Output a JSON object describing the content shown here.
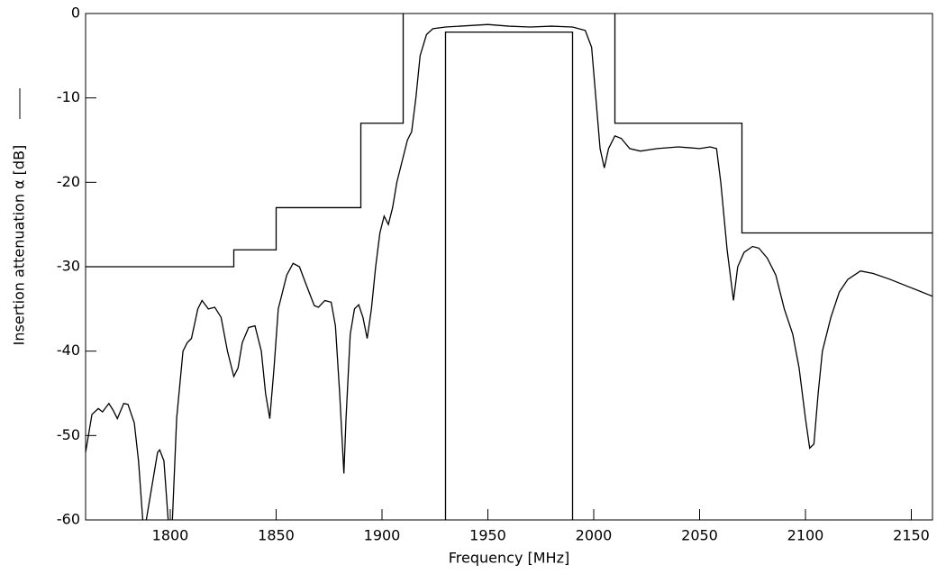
{
  "chart_data": {
    "type": "line",
    "xlabel": "Frequency [MHz]",
    "ylabel": "Insertion attenuation α [dB]",
    "xlim": [
      1760,
      2160
    ],
    "ylim": [
      -60,
      0
    ],
    "xticks": [
      1800,
      1850,
      1900,
      1950,
      2000,
      2050,
      2100,
      2150
    ],
    "yticks": [
      0,
      -10,
      -20,
      -30,
      -40,
      -50,
      -60
    ],
    "color": "#000000",
    "lines": [
      {
        "x": [
          1760,
          1763,
          1766,
          1768,
          1771,
          1773,
          1775,
          1778,
          1780,
          1783,
          1785,
          1787,
          1788,
          1790,
          1792,
          1794,
          1795,
          1797,
          1799,
          1800,
          1801,
          1803,
          1806,
          1808,
          1810,
          1813,
          1815,
          1818,
          1821,
          1824,
          1827,
          1830,
          1832,
          1834,
          1837,
          1840,
          1843,
          1845,
          1847,
          1849,
          1851,
          1855,
          1858,
          1861,
          1864,
          1868,
          1870,
          1873,
          1876,
          1878,
          1880,
          1882,
          1883,
          1885,
          1887,
          1889,
          1891,
          1893,
          1895,
          1897,
          1899,
          1901,
          1903,
          1905,
          1907,
          1909,
          1912,
          1914,
          1916,
          1918,
          1921,
          1924,
          1930,
          1950,
          1960,
          1970,
          1980,
          1990,
          1996,
          1999,
          2001,
          2003,
          2005,
          2007,
          2010,
          2013,
          2017,
          2022,
          2030,
          2040,
          2050,
          2055,
          2058,
          2060,
          2063,
          2066,
          2068,
          2071,
          2075,
          2078,
          2082,
          2086,
          2090,
          2094,
          2097,
          2100,
          2102,
          2104,
          2106,
          2108,
          2112,
          2116,
          2120,
          2126,
          2132,
          2140,
          2150,
          2160
        ],
        "y": [
          -52,
          -47.5,
          -46.8,
          -47.2,
          -46.2,
          -47,
          -48,
          -46.2,
          -46.3,
          -48.5,
          -53,
          -60,
          -61,
          -58,
          -55,
          -52,
          -51.7,
          -53,
          -60,
          -61,
          -60,
          -48,
          -40,
          -39,
          -38.5,
          -35,
          -34,
          -35,
          -34.8,
          -36,
          -40,
          -43,
          -42,
          -39,
          -37.2,
          -37,
          -40,
          -45,
          -48,
          -42,
          -35,
          -31,
          -29.6,
          -30,
          -32,
          -34.6,
          -34.8,
          -34,
          -34.2,
          -37,
          -45,
          -54.5,
          -48,
          -38,
          -35,
          -34.5,
          -36,
          -38.5,
          -35,
          -30,
          -26,
          -24,
          -25,
          -23,
          -20,
          -18,
          -15,
          -14,
          -10,
          -5,
          -2.5,
          -1.8,
          -1.6,
          -1.3,
          -1.5,
          -1.6,
          -1.5,
          -1.6,
          -2,
          -4,
          -10,
          -16,
          -18.3,
          -16,
          -14.5,
          -14.8,
          -16,
          -16.3,
          -16,
          -15.8,
          -16,
          -15.8,
          -16,
          -20,
          -28,
          -34,
          -30,
          -28.3,
          -27.6,
          -27.8,
          -29,
          -31,
          -35,
          -38,
          -42,
          -48,
          -51.5,
          -51,
          -45,
          -40,
          -36,
          -33,
          -31.5,
          -30.5,
          -30.8,
          -31.5,
          -32.5,
          -33.5
        ]
      },
      {
        "x": [
          1760,
          1830,
          1830,
          1850,
          1850,
          1890,
          1890,
          1910,
          1910
        ],
        "y": [
          -30,
          -30,
          -28,
          -28,
          -23,
          -23,
          -13,
          -13,
          0
        ]
      },
      {
        "x": [
          2010,
          2010,
          2070,
          2070,
          2160
        ],
        "y": [
          0,
          -13,
          -13,
          -26,
          -26
        ]
      },
      {
        "x": [
          1930,
          1930,
          1990,
          1990
        ],
        "y": [
          -60,
          -2.2,
          -2.2,
          -60
        ]
      }
    ]
  }
}
